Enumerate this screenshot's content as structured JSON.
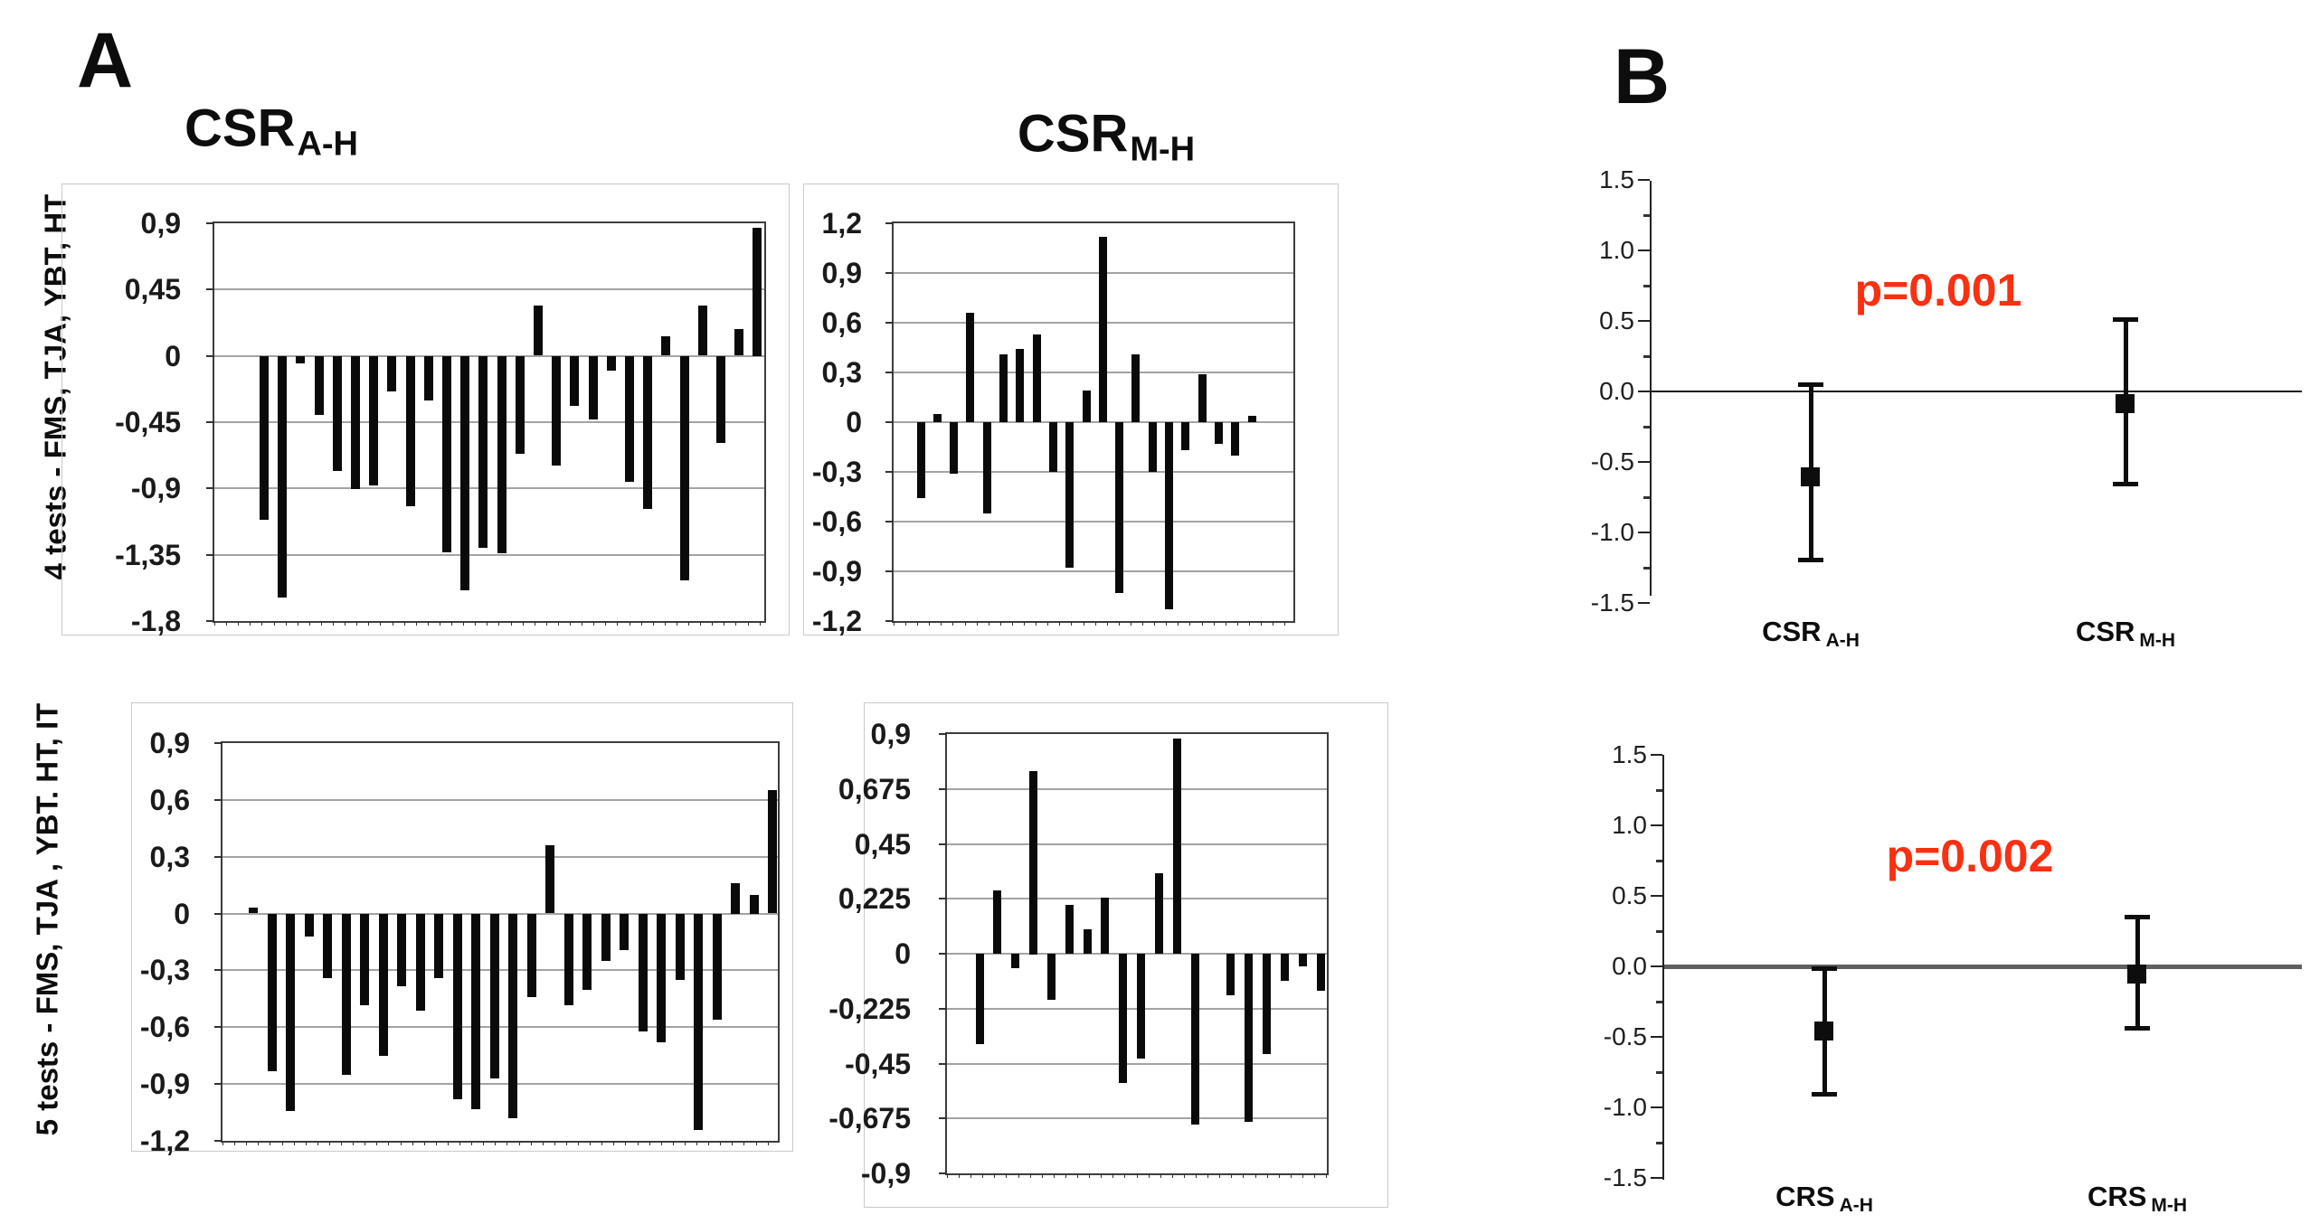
{
  "figure": {
    "panel_a_label": "A",
    "panel_b_label": "B",
    "row_labels": [
      "4 tests - FMS, TJA, YBT, HT",
      "5 tests - FMS, TJA , YBT. HT, IT"
    ],
    "col_titles": [
      {
        "base": "CSR",
        "sub": "A-H"
      },
      {
        "base": "CSR",
        "sub": "M-H"
      }
    ],
    "colors": {
      "bar": "#0a0a0a",
      "p_value": "#f93011",
      "gridline": "#a3a3a3",
      "plot_border": "#3d3d3d",
      "outer_box": "#c9c9c9",
      "tick": "#333333",
      "zero_line_top": "#1a1a1a",
      "zero_line_bottom": "#5f5f5f",
      "marker": "#0d0d0d"
    }
  },
  "chart_data": [
    {
      "id": "csr-ah-4tests",
      "type": "bar",
      "title": "CSR A-H",
      "row_label": "4 tests - FMS, TJA, YBT, HT",
      "ylim": [
        -1.8,
        0.9
      ],
      "ytick_step": 0.45,
      "ytick_labels": [
        "0,9",
        "0,45",
        "0",
        "-0,45",
        "-0,9",
        "-1,35",
        "-1,8"
      ],
      "values": [
        -1.11,
        -1.64,
        -0.05,
        -0.4,
        -0.78,
        -0.9,
        -0.88,
        -0.24,
        -1.02,
        -0.3,
        -1.33,
        -1.59,
        -1.3,
        -1.34,
        -0.66,
        0.34,
        -0.74,
        -0.34,
        -0.43,
        -0.1,
        -0.85,
        -1.04,
        0.13,
        -1.52,
        0.34,
        -0.59,
        0.18,
        0.87
      ]
    },
    {
      "id": "csr-mh-4tests",
      "type": "bar",
      "title": "CSR M-H",
      "row_label": "4 tests - FMS, TJA, YBT, HT",
      "ylim": [
        -1.2,
        1.2
      ],
      "ytick_step": 0.3,
      "ytick_labels": [
        "1,2",
        "0,9",
        "0,6",
        "0,3",
        "0",
        "-0,3",
        "-0,6",
        "-0,9",
        "-1,2"
      ],
      "values": [
        -0.46,
        0.05,
        -0.31,
        0.66,
        -0.55,
        0.41,
        0.44,
        0.53,
        -0.3,
        -0.88,
        0.19,
        1.12,
        -1.03,
        0.41,
        -0.3,
        -1.13,
        -0.17,
        0.29,
        -0.13,
        -0.2,
        0.04
      ]
    },
    {
      "id": "csr-ah-5tests",
      "type": "bar",
      "title": "CSR A-H",
      "row_label": "5 tests - FMS, TJA , YBT. HT, IT",
      "ylim": [
        -1.2,
        0.9
      ],
      "ytick_step": 0.3,
      "ytick_labels": [
        "0,9",
        "0,6",
        "0,3",
        "0",
        "-0,3",
        "-0,6",
        "-0,9",
        "-1,2"
      ],
      "values": [
        0.03,
        -0.83,
        -1.04,
        -0.12,
        -0.34,
        -0.85,
        -0.48,
        -0.75,
        -0.38,
        -0.51,
        -0.34,
        -0.98,
        -1.03,
        -0.87,
        -1.08,
        -0.44,
        0.36,
        -0.48,
        -0.4,
        -0.25,
        -0.19,
        -0.62,
        -0.68,
        -0.35,
        -1.14,
        -0.56,
        0.16,
        0.1,
        0.65
      ]
    },
    {
      "id": "csr-mh-5tests",
      "type": "bar",
      "title": "CSR M-H",
      "row_label": "5 tests - FMS, TJA , YBT. HT, IT",
      "ylim": [
        -0.9,
        0.9
      ],
      "ytick_step": 0.225,
      "ytick_labels": [
        "0,9",
        "0,675",
        "0,45",
        "0,225",
        "0",
        "-0,225",
        "-0,45",
        "-0,675",
        "-0,9"
      ],
      "values": [
        -0.37,
        0.26,
        -0.06,
        0.75,
        -0.19,
        0.2,
        0.1,
        0.23,
        -0.53,
        -0.43,
        0.33,
        0.88,
        -0.7,
        0,
        -0.17,
        -0.69,
        -0.41,
        -0.11,
        -0.05,
        -0.15
      ]
    },
    {
      "id": "effect-4tests",
      "type": "errorbar",
      "p_label": "p=0.001",
      "ylim": [
        -1.5,
        1.5
      ],
      "ytick_step": 0.5,
      "ytick_labels": [
        "1.5",
        "1.0",
        "0.5",
        "0.0",
        "-0.5",
        "-1.0",
        "-1.5"
      ],
      "series": [
        {
          "label_base": "CSR",
          "label_sub": "A-H",
          "mean": -0.61,
          "upper": 0.05,
          "lower": -1.2
        },
        {
          "label_base": "CSR",
          "label_sub": "M-H",
          "mean": -0.09,
          "upper": 0.51,
          "lower": -0.66
        }
      ]
    },
    {
      "id": "effect-5tests",
      "type": "errorbar",
      "p_label": "p=0.002",
      "ylim": [
        -1.5,
        1.5
      ],
      "ytick_step": 0.5,
      "ytick_labels": [
        "1.5",
        "1.0",
        "0.5",
        "0.0",
        "-0.5",
        "-1.0",
        "-1.5"
      ],
      "series": [
        {
          "label_base": "CRS",
          "label_sub": "A-H",
          "mean": -0.46,
          "upper": -0.01,
          "lower": -0.91
        },
        {
          "label_base": "CRS",
          "label_sub": "M-H",
          "mean": -0.06,
          "upper": 0.35,
          "lower": -0.44
        }
      ]
    }
  ]
}
